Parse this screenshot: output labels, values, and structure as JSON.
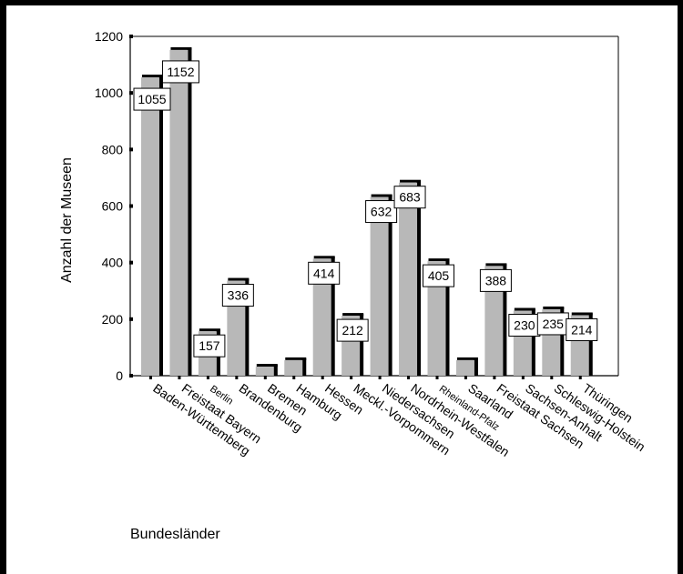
{
  "chart_data": {
    "type": "bar",
    "title": "",
    "xlabel": "Bundesländer",
    "ylabel": "Anzahl der Museen",
    "ylim": [
      0,
      1200
    ],
    "yticks": [
      "0",
      "200",
      "400",
      "600",
      "800",
      "1000",
      "1200"
    ],
    "categories": [
      "Baden-Württemberg",
      "Freistaat Bayern",
      "Berlin",
      "Brandenburg",
      "Bremen",
      "Hamburg",
      "Hessen",
      "Meckl.-Vorpommern",
      "Niedersachsen",
      "Nordrhein-Westfalen",
      "Rheinland-Pfalz",
      "Saarland",
      "Freistaat Sachsen",
      "Sachsen-Anhalt",
      "Schleswig-Holstein",
      "Thüringen"
    ],
    "values": [
      1055,
      1152,
      157,
      336,
      32,
      55,
      414,
      212,
      632,
      683,
      405,
      55,
      388,
      230,
      235,
      214
    ],
    "data_labels": [
      "1055",
      "1152",
      "157",
      "336",
      "",
      "",
      "414",
      "212",
      "632",
      "683",
      "405",
      "",
      "388",
      "230",
      "235",
      "214"
    ],
    "small_label_categories": [
      "Berlin",
      "Rheinland-Pfalz"
    ],
    "colors": {
      "bar": "#b8b8b8",
      "bar_shadow": "#000000",
      "background": "#ffffff"
    },
    "grid": false,
    "legend": "none"
  }
}
